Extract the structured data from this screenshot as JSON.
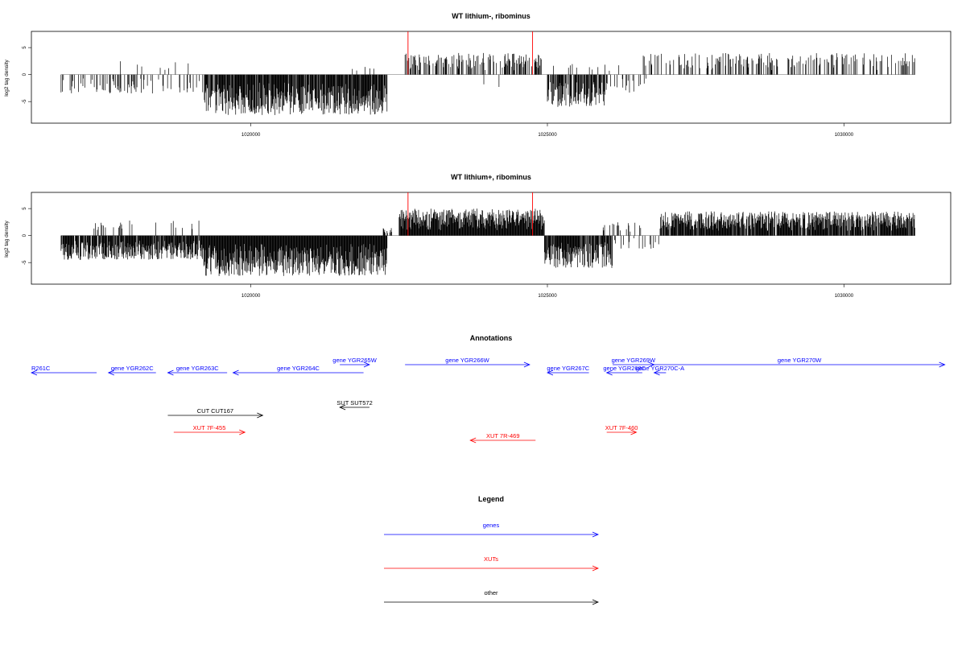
{
  "chart_data": [
    {
      "type": "bar",
      "title": "WT lithium-, ribominus",
      "ylabel": "log2 tag density",
      "xlim": [
        1016300,
        1031800
      ],
      "ylim": [
        -9,
        8
      ],
      "x_ticks": [
        "1020000",
        "1025000",
        "1030000"
      ],
      "y_ticks": [
        "-5",
        "0",
        "5"
      ],
      "x_tick_values": [
        1020000,
        1025000,
        1030000
      ],
      "y_tick_values": [
        -5,
        0,
        5
      ],
      "segments": [
        {
          "start": 1016800,
          "end": 1018300,
          "sign": -1,
          "amp": 3.5,
          "density": 0.25
        },
        {
          "start": 1017800,
          "end": 1019300,
          "sign": 1,
          "amp": 2.5,
          "density": 0.04
        },
        {
          "start": 1018300,
          "end": 1019300,
          "sign": -1,
          "amp": 3.5,
          "density": 0.12
        },
        {
          "start": 1019200,
          "end": 1022300,
          "sign": -1,
          "amp": 7.5,
          "density": 0.9
        },
        {
          "start": 1021600,
          "end": 1022200,
          "sign": 1,
          "amp": 1.5,
          "density": 0.05
        },
        {
          "start": 1022600,
          "end": 1024900,
          "sign": 1,
          "amp": 4.0,
          "density": 0.4
        },
        {
          "start": 1023800,
          "end": 1024300,
          "sign": -1,
          "amp": 2.5,
          "density": 0.05
        },
        {
          "start": 1025000,
          "end": 1026000,
          "sign": -1,
          "amp": 6.0,
          "density": 0.7
        },
        {
          "start": 1025100,
          "end": 1026300,
          "sign": 1,
          "amp": 2.0,
          "density": 0.06
        },
        {
          "start": 1026000,
          "end": 1026700,
          "sign": -1,
          "amp": 3.5,
          "density": 0.15
        },
        {
          "start": 1026600,
          "end": 1031200,
          "sign": 1,
          "amp": 4.0,
          "density": 0.3
        }
      ],
      "marker_lines": [
        {
          "x": 1022650,
          "color": "#ff0000",
          "height": 8
        },
        {
          "x": 1024750,
          "color": "#ff0000",
          "height": 8
        }
      ],
      "seed": 7
    },
    {
      "type": "bar",
      "title": "WT lithium+, ribominus",
      "ylabel": "log2 tag density",
      "xlim": [
        1016300,
        1031800
      ],
      "ylim": [
        -9,
        8
      ],
      "x_ticks": [
        "1020000",
        "1025000",
        "1030000"
      ],
      "y_ticks": [
        "-5",
        "0",
        "5"
      ],
      "x_tick_values": [
        1020000,
        1025000,
        1030000
      ],
      "y_tick_values": [
        -5,
        0,
        5
      ],
      "segments": [
        {
          "start": 1016800,
          "end": 1019200,
          "sign": -1,
          "amp": 4.5,
          "density": 0.9
        },
        {
          "start": 1017300,
          "end": 1019300,
          "sign": 1,
          "amp": 2.8,
          "density": 0.08
        },
        {
          "start": 1019200,
          "end": 1022300,
          "sign": -1,
          "amp": 7.5,
          "density": 1.0
        },
        {
          "start": 1022200,
          "end": 1022400,
          "sign": 1,
          "amp": 1.5,
          "density": 0.3
        },
        {
          "start": 1022500,
          "end": 1024950,
          "sign": 1,
          "amp": 5.0,
          "density": 1.0
        },
        {
          "start": 1024950,
          "end": 1026100,
          "sign": -1,
          "amp": 6.0,
          "density": 0.9
        },
        {
          "start": 1025900,
          "end": 1026600,
          "sign": 1,
          "amp": 2.5,
          "density": 0.2
        },
        {
          "start": 1026100,
          "end": 1026900,
          "sign": -1,
          "amp": 2.5,
          "density": 0.2
        },
        {
          "start": 1026900,
          "end": 1031200,
          "sign": 1,
          "amp": 4.5,
          "density": 0.9
        }
      ],
      "marker_lines": [
        {
          "x": 1022650,
          "color": "#ff0000",
          "height": 8
        },
        {
          "x": 1024750,
          "color": "#ff0000",
          "height": 8
        }
      ],
      "seed": 13
    }
  ],
  "annotations": {
    "title": "Annotations",
    "xlim": [
      1016300,
      1031800
    ],
    "features": [
      {
        "label": "R261C",
        "start": 1016300,
        "end": 1017400,
        "strand": "-",
        "color": "#0000ff",
        "row": 1,
        "label_x": 1016300
      },
      {
        "label": "gene YGR262C",
        "start": 1017600,
        "end": 1018400,
        "strand": "-",
        "color": "#0000ff",
        "row": 1
      },
      {
        "label": "gene YGR263C",
        "start": 1018600,
        "end": 1019600,
        "strand": "-",
        "color": "#0000ff",
        "row": 1
      },
      {
        "label": "gene YGR264C",
        "start": 1019700,
        "end": 1021900,
        "strand": "-",
        "color": "#0000ff",
        "row": 1
      },
      {
        "label": "gene YGR265W",
        "start": 1021500,
        "end": 1022000,
        "strand": "+",
        "color": "#0000ff",
        "row": 0
      },
      {
        "label": "gene YGR266W",
        "start": 1022600,
        "end": 1024700,
        "strand": "+",
        "color": "#0000ff",
        "row": 0
      },
      {
        "label": "gene YGR267C",
        "start": 1025000,
        "end": 1025700,
        "strand": "-",
        "color": "#0000ff",
        "row": 1
      },
      {
        "label": "gene YGR268C",
        "start": 1026000,
        "end": 1026600,
        "strand": "-",
        "color": "#0000ff",
        "row": 1
      },
      {
        "label": "gene YGR269W",
        "start": 1026100,
        "end": 1026800,
        "strand": "+",
        "color": "#0000ff",
        "row": 0
      },
      {
        "label": "gene YGR270C-A",
        "start": 1026800,
        "end": 1027000,
        "strand": "-",
        "color": "#0000ff",
        "row": 1
      },
      {
        "label": "gene YGR270W",
        "start": 1026800,
        "end": 1031700,
        "strand": "+",
        "color": "#0000ff",
        "row": 0
      },
      {
        "label": "SUT SUT572",
        "start": 1021500,
        "end": 1022000,
        "strand": "-",
        "color": "#000000",
        "row": 2
      },
      {
        "label": "CUT CUT167",
        "start": 1018600,
        "end": 1020200,
        "strand": "+",
        "color": "#000000",
        "row": 3
      },
      {
        "label": "XUT 7F-455",
        "start": 1018700,
        "end": 1019900,
        "strand": "+",
        "color": "#ff0000",
        "row": 4
      },
      {
        "label": "XUT 7R-469",
        "start": 1023700,
        "end": 1024800,
        "strand": "-",
        "color": "#ff0000",
        "row": 5
      },
      {
        "label": "XUT 7F-460",
        "start": 1026000,
        "end": 1026500,
        "strand": "+",
        "color": "#ff0000",
        "row": 4
      }
    ]
  },
  "legend": {
    "title": "Legend",
    "items": [
      {
        "label": "genes",
        "color": "#0000ff"
      },
      {
        "label": "XUTs",
        "color": "#ff0000"
      },
      {
        "label": "other",
        "color": "#000000"
      }
    ]
  }
}
